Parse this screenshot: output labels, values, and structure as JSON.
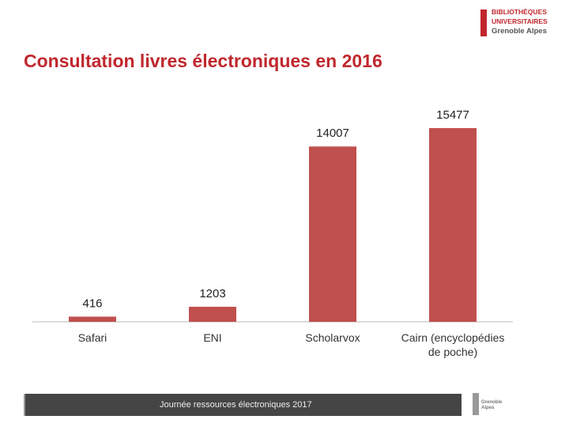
{
  "header": {
    "title": "Consultation livres électroniques en 2016",
    "logo_lines": [
      "BIBLIOTHÈQUES",
      "UNIVERSITAIRES",
      "Grenoble Alpes"
    ]
  },
  "chart_data": {
    "type": "bar",
    "categories": [
      "Safari",
      "ENI",
      "Scholarvox",
      "Cairn (encyclopédies de poche)"
    ],
    "values": [
      416,
      1203,
      14007,
      15477
    ],
    "color": "#c0504d"
  },
  "footer": {
    "text": "Journée ressources électroniques 2017",
    "logo_text": "Grenoble Alpes"
  }
}
